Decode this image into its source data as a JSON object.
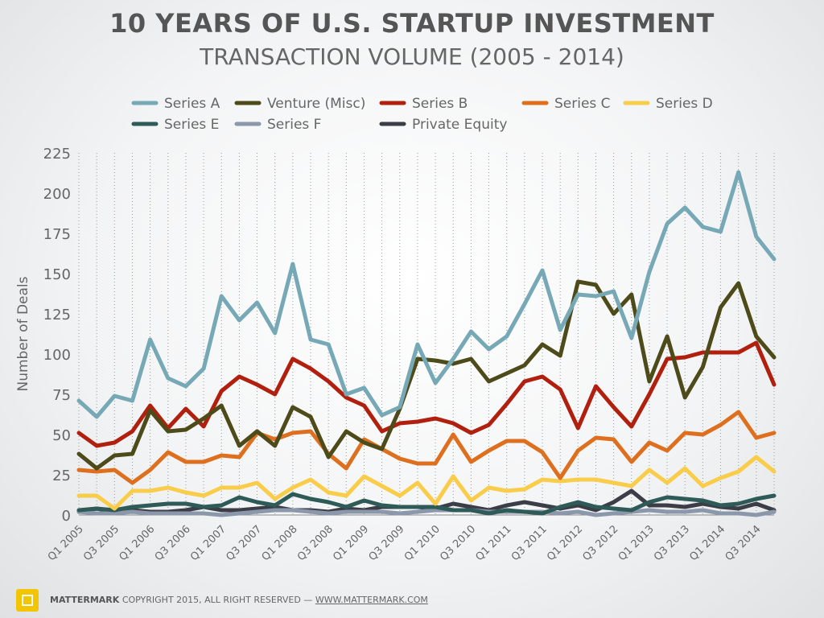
{
  "header": {
    "title": "10 YEARS OF U.S. STARTUP INVESTMENT",
    "subtitle": "TRANSACTION VOLUME (2005 - 2014)"
  },
  "footer": {
    "brand": "MATTERMARK",
    "copyright": "COPYRIGHT 2015, ALL RIGHT RESERVED —",
    "url": "WWW.MATTERMARK.COM",
    "logo_color": "#f2c500"
  },
  "chart_data": {
    "type": "line",
    "ylabel": "Number of Deals",
    "xlabel": "",
    "ylim": [
      0,
      225
    ],
    "yticks": [
      0,
      25,
      50,
      75,
      100,
      125,
      150,
      175,
      200,
      225
    ],
    "grid": "dotted vertical",
    "legend_position": "top",
    "x_tick_labels": [
      "Q1 2005",
      "Q3 2005",
      "Q1 2006",
      "Q3 2006",
      "Q1 2007",
      "Q3 2007",
      "Q1 2008",
      "Q3 2008",
      "Q1 2009",
      "Q3 2009",
      "Q1 2010",
      "Q3 2010",
      "Q1 2011",
      "Q3 2011",
      "Q1 2012",
      "Q3 2012",
      "Q1 2013",
      "Q3 2013",
      "Q1 2014",
      "Q3 2014"
    ],
    "categories": [
      "Q1 2005",
      "Q2 2005",
      "Q3 2005",
      "Q4 2005",
      "Q1 2006",
      "Q2 2006",
      "Q3 2006",
      "Q4 2006",
      "Q1 2007",
      "Q2 2007",
      "Q3 2007",
      "Q4 2007",
      "Q1 2008",
      "Q2 2008",
      "Q3 2008",
      "Q4 2008",
      "Q1 2009",
      "Q2 2009",
      "Q3 2009",
      "Q4 2009",
      "Q1 2010",
      "Q2 2010",
      "Q3 2010",
      "Q4 2010",
      "Q1 2011",
      "Q2 2011",
      "Q3 2011",
      "Q4 2011",
      "Q1 2012",
      "Q2 2012",
      "Q3 2012",
      "Q4 2012",
      "Q1 2013",
      "Q2 2013",
      "Q3 2013",
      "Q4 2013",
      "Q1 2014",
      "Q2 2014",
      "Q3 2014",
      "Q4 2014"
    ],
    "series": [
      {
        "name": "Private Equity",
        "color": "#3b3e47",
        "values": [
          2,
          4,
          2,
          3,
          2,
          2,
          3,
          5,
          3,
          3,
          4,
          5,
          3,
          3,
          2,
          4,
          3,
          5,
          5,
          5,
          4,
          7,
          5,
          3,
          6,
          8,
          6,
          4,
          6,
          3,
          8,
          15,
          6,
          6,
          5,
          7,
          5,
          4,
          7,
          3
        ]
      },
      {
        "name": "Series F",
        "color": "#8b97ab",
        "values": [
          2,
          1,
          1,
          2,
          1,
          1,
          1,
          1,
          0,
          1,
          2,
          3,
          3,
          2,
          1,
          2,
          2,
          2,
          1,
          2,
          3,
          3,
          3,
          2,
          2,
          2,
          2,
          1,
          2,
          0,
          1,
          2,
          3,
          2,
          2,
          3,
          1,
          1,
          0,
          2
        ]
      },
      {
        "name": "Series E",
        "color": "#2e5a57",
        "values": [
          3,
          4,
          3,
          5,
          6,
          7,
          7,
          5,
          6,
          11,
          8,
          6,
          13,
          10,
          8,
          5,
          9,
          6,
          5,
          5,
          5,
          3,
          3,
          1,
          3,
          2,
          1,
          5,
          8,
          5,
          4,
          3,
          8,
          11,
          10,
          9,
          6,
          7,
          10,
          12
        ]
      },
      {
        "name": "Series D",
        "color": "#f9cc4a",
        "values": [
          12,
          12,
          4,
          15,
          15,
          17,
          14,
          12,
          17,
          17,
          20,
          10,
          17,
          22,
          14,
          12,
          24,
          18,
          12,
          20,
          7,
          24,
          9,
          17,
          15,
          16,
          22,
          21,
          22,
          22,
          20,
          18,
          28,
          20,
          29,
          18,
          23,
          27,
          36,
          27
        ]
      },
      {
        "name": "Series C",
        "color": "#de6f1e",
        "values": [
          28,
          27,
          28,
          20,
          28,
          39,
          33,
          33,
          37,
          36,
          51,
          47,
          51,
          52,
          38,
          29,
          47,
          41,
          35,
          32,
          32,
          50,
          33,
          40,
          46,
          46,
          39,
          23,
          40,
          48,
          47,
          33,
          45,
          40,
          51,
          50,
          56,
          64,
          48,
          51
        ]
      },
      {
        "name": "Series B",
        "color": "#b1200e",
        "values": [
          51,
          43,
          45,
          52,
          68,
          54,
          66,
          55,
          77,
          86,
          81,
          75,
          97,
          91,
          83,
          73,
          68,
          52,
          57,
          58,
          60,
          57,
          51,
          56,
          69,
          83,
          86,
          78,
          54,
          80,
          67,
          55,
          75,
          97,
          98,
          101,
          101,
          101,
          107,
          81
        ]
      },
      {
        "name": "Venture (Misc)",
        "color": "#4e4b1b",
        "values": [
          38,
          29,
          37,
          38,
          65,
          52,
          53,
          60,
          68,
          43,
          52,
          43,
          67,
          61,
          36,
          52,
          45,
          41,
          66,
          97,
          96,
          94,
          97,
          83,
          88,
          93,
          106,
          99,
          145,
          143,
          125,
          137,
          83,
          111,
          73,
          92,
          129,
          144,
          111,
          98
        ]
      },
      {
        "name": "Series A",
        "color": "#77a8b6",
        "values": [
          71,
          61,
          74,
          71,
          109,
          85,
          80,
          91,
          136,
          121,
          132,
          113,
          156,
          109,
          106,
          75,
          79,
          62,
          67,
          106,
          82,
          97,
          114,
          103,
          111,
          131,
          152,
          115,
          137,
          136,
          139,
          110,
          151,
          181,
          191,
          179,
          176,
          213,
          173,
          159
        ]
      }
    ],
    "legend": [
      {
        "name": "Series A",
        "color": "#77a8b6"
      },
      {
        "name": "Venture (Misc)",
        "color": "#4e4b1b"
      },
      {
        "name": "Series B",
        "color": "#b1200e"
      },
      {
        "name": "Series C",
        "color": "#de6f1e"
      },
      {
        "name": "Series D",
        "color": "#f9cc4a"
      },
      {
        "name": "Series E",
        "color": "#2e5a57"
      },
      {
        "name": "Series F",
        "color": "#8b97ab"
      },
      {
        "name": "Private Equity",
        "color": "#3b3e47"
      }
    ]
  }
}
